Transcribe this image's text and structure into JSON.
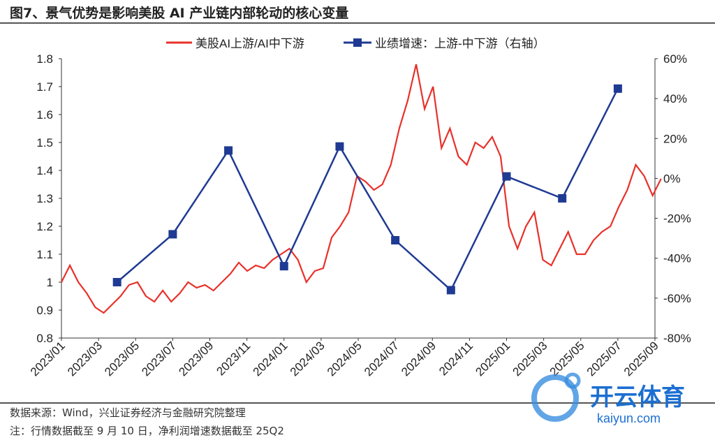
{
  "title": "图7、景气优势是影响美股 AI 产业链内部轮动的核心变量",
  "footer": {
    "source": "数据来源：Wind，兴业证券经济与金融研究院整理",
    "note": "注：行情数据截至 9 月 10 日，净利润增速数据截至 25Q2"
  },
  "watermark": {
    "text": "开云体育",
    "url": "kaiyun.com"
  },
  "chart_data": {
    "type": "line",
    "x_ticks": [
      "2023/01",
      "2023/03",
      "2023/05",
      "2023/07",
      "2023/09",
      "2023/11",
      "2024/01",
      "2024/03",
      "2024/05",
      "2024/07",
      "2024/09",
      "2024/11",
      "2025/01",
      "2025/03",
      "2025/05",
      "2025/07",
      "2025/09"
    ],
    "left_axis": {
      "ylim": [
        0.8,
        1.8
      ],
      "ticks": [
        "0.8",
        "0.9",
        "1",
        "1.1",
        "1.2",
        "1.3",
        "1.4",
        "1.5",
        "1.6",
        "1.7",
        "1.8"
      ]
    },
    "right_axis": {
      "ylim": [
        -80,
        60
      ],
      "ticks": [
        "-80%",
        "-60%",
        "-40%",
        "-20%",
        "0%",
        "20%",
        "40%",
        "60%"
      ]
    },
    "series": [
      {
        "name": "美股AI上游/AI中下游",
        "axis": "left",
        "color": "#e8312a",
        "x_start_month": 0,
        "x_end_month": 32.33,
        "values": [
          1.0,
          1.06,
          1.0,
          0.96,
          0.91,
          0.89,
          0.92,
          0.95,
          0.99,
          1.0,
          0.95,
          0.93,
          0.97,
          0.93,
          0.96,
          1.0,
          0.98,
          0.99,
          0.97,
          1.0,
          1.03,
          1.07,
          1.04,
          1.06,
          1.05,
          1.08,
          1.1,
          1.12,
          1.08,
          1.0,
          1.04,
          1.05,
          1.16,
          1.2,
          1.25,
          1.38,
          1.36,
          1.33,
          1.35,
          1.42,
          1.55,
          1.65,
          1.78,
          1.62,
          1.7,
          1.48,
          1.55,
          1.45,
          1.42,
          1.5,
          1.48,
          1.52,
          1.45,
          1.2,
          1.12,
          1.2,
          1.25,
          1.08,
          1.06,
          1.12,
          1.18,
          1.1,
          1.1,
          1.15,
          1.18,
          1.2,
          1.27,
          1.33,
          1.42,
          1.38,
          1.31,
          1.37
        ]
      },
      {
        "name": "业绩增速：上游-中下游（右轴）",
        "axis": "right",
        "color": "#1f3a93",
        "x_months": [
          3,
          6,
          9,
          12,
          15,
          18,
          21,
          24,
          27,
          30
        ],
        "values": [
          -52,
          -28,
          14,
          -44,
          16,
          -31,
          -56,
          1,
          -10,
          45
        ]
      }
    ]
  }
}
